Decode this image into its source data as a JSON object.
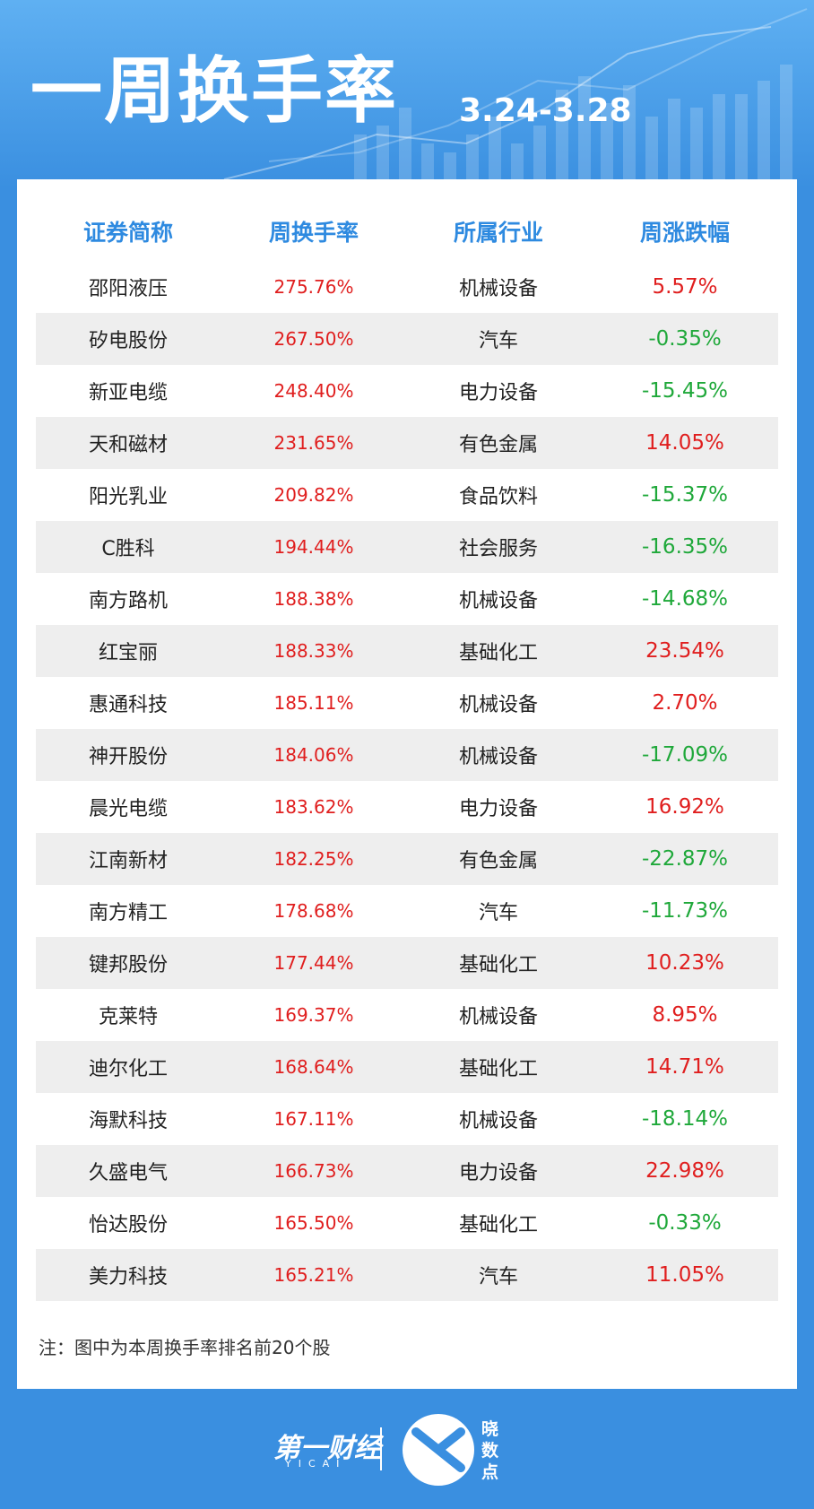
{
  "header": {
    "title": "一周换手率",
    "date": "3.24-3.28"
  },
  "table": {
    "columns": [
      "证券简称",
      "周换手率",
      "所属行业",
      "周涨跌幅"
    ],
    "rows": [
      [
        "邵阳液压",
        "275.76%",
        "机械设备",
        "5.57%"
      ],
      [
        "矽电股份",
        "267.50%",
        "汽车",
        "-0.35%"
      ],
      [
        "新亚电缆",
        "248.40%",
        "电力设备",
        "-15.45%"
      ],
      [
        "天和磁材",
        "231.65%",
        "有色金属",
        "14.05%"
      ],
      [
        "阳光乳业",
        "209.82%",
        "食品饮料",
        "-15.37%"
      ],
      [
        "C胜科",
        "194.44%",
        "社会服务",
        "-16.35%"
      ],
      [
        "南方路机",
        "188.38%",
        "机械设备",
        "-14.68%"
      ],
      [
        "红宝丽",
        "188.33%",
        "基础化工",
        "23.54%"
      ],
      [
        "惠通科技",
        "185.11%",
        "机械设备",
        "2.70%"
      ],
      [
        "神开股份",
        "184.06%",
        "机械设备",
        "-17.09%"
      ],
      [
        "晨光电缆",
        "183.62%",
        "电力设备",
        "16.92%"
      ],
      [
        "江南新材",
        "182.25%",
        "有色金属",
        "-22.87%"
      ],
      [
        "南方精工",
        "178.68%",
        "汽车",
        "-11.73%"
      ],
      [
        "键邦股份",
        "177.44%",
        "基础化工",
        "10.23%"
      ],
      [
        "克莱特",
        "169.37%",
        "机械设备",
        "8.95%"
      ],
      [
        "迪尔化工",
        "168.64%",
        "基础化工",
        "14.71%"
      ],
      [
        "海默科技",
        "167.11%",
        "机械设备",
        "-18.14%"
      ],
      [
        "久盛电气",
        "166.73%",
        "电力设备",
        "22.98%"
      ],
      [
        "怡达股份",
        "165.50%",
        "基础化工",
        "-0.33%"
      ],
      [
        "美力科技",
        "165.21%",
        "汽车",
        "11.05%"
      ]
    ]
  },
  "note": "注：图中为本周换手率排名前20个股",
  "footer": {
    "brand": "第一财经",
    "brand_sub": "YICAI",
    "product": "晓数点"
  }
}
